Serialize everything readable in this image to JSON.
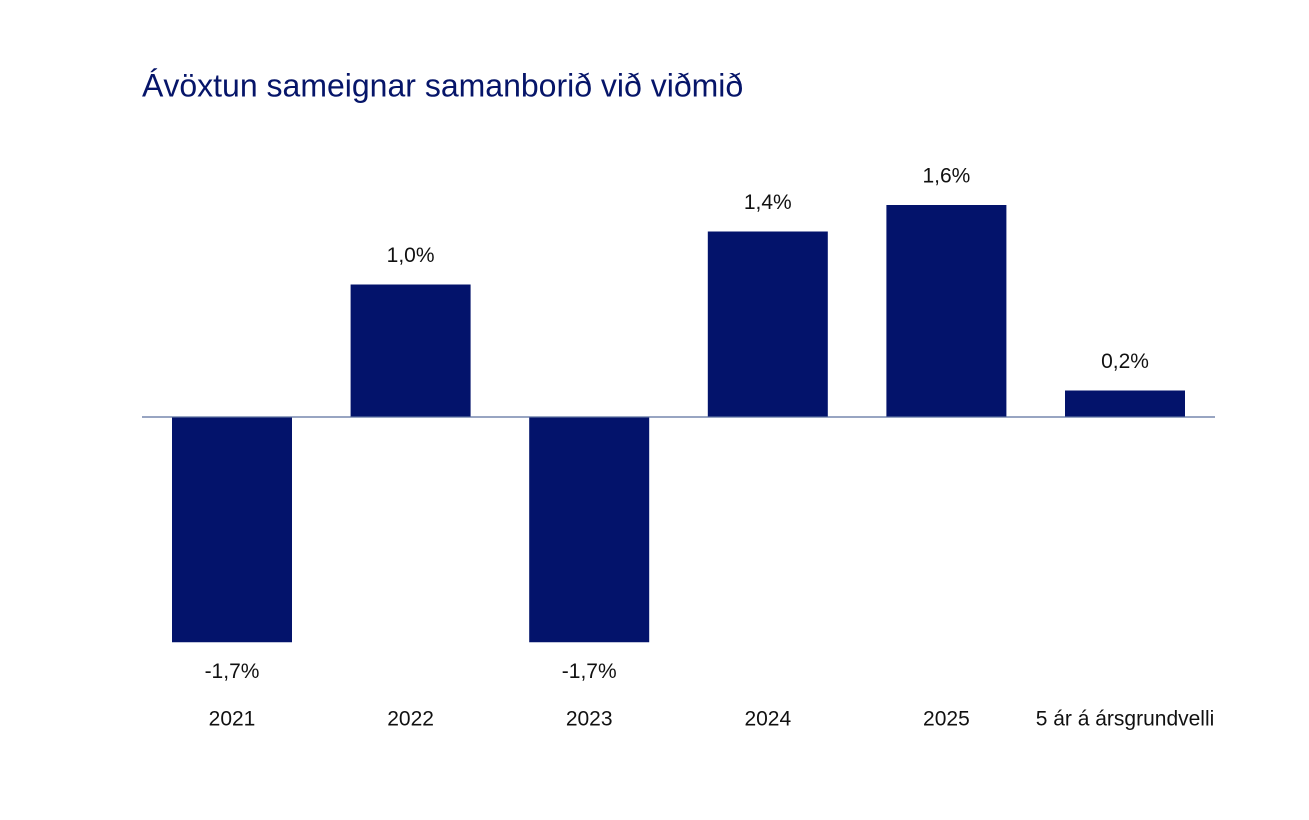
{
  "chart_data": {
    "type": "bar",
    "title": "Ávöxtun sameignar samanborið við viðmið",
    "categories": [
      "2021",
      "2022",
      "2023",
      "2024",
      "2025",
      "5 ár á ársgrundvelli"
    ],
    "values": [
      -1.7,
      1.0,
      -1.7,
      1.4,
      1.6,
      0.2
    ],
    "value_labels": [
      "-1,7%",
      "1,0%",
      "-1,7%",
      "1,4%",
      "1,6%",
      "0,2%"
    ],
    "color": "#03136b"
  }
}
